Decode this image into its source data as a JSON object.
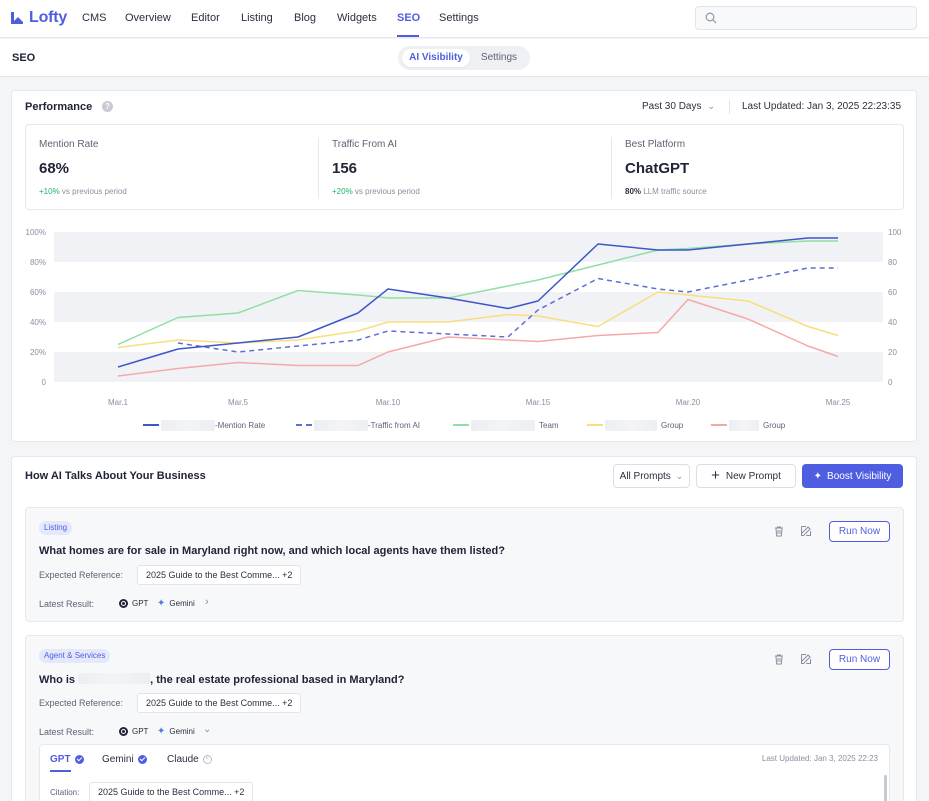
{
  "app": {
    "logo_text": "Lofty",
    "brand_color": "#4f5ee0"
  },
  "nav": {
    "items": [
      {
        "label": "CMS",
        "active": false
      },
      {
        "label": "Overview",
        "active": false
      },
      {
        "label": "Editor",
        "active": false
      },
      {
        "label": "Listing",
        "active": false
      },
      {
        "label": "Blog",
        "active": false
      },
      {
        "label": "Widgets",
        "active": false
      },
      {
        "label": "SEO",
        "active": true
      },
      {
        "label": "Settings",
        "active": false
      }
    ],
    "search_placeholder": ""
  },
  "subbar": {
    "title": "SEO",
    "tabs": [
      {
        "label": "AI Visibility",
        "active": true
      },
      {
        "label": "Settings",
        "active": false
      }
    ]
  },
  "performance": {
    "title": "Performance",
    "help_icon": "question-icon",
    "range": "Past 30 Days",
    "last_updated": "Last Updated: Jan 3, 2025 22:23:35",
    "metrics": [
      {
        "label": "Mention Rate",
        "value": "68%",
        "delta": "+10%",
        "delta_suffix": " vs previous period"
      },
      {
        "label": "Traffic From AI",
        "value": "156",
        "delta": "+20%",
        "delta_suffix": " vs previous period"
      },
      {
        "label": "Best Platform",
        "value": "ChatGPT",
        "note_bold": "80%",
        "note": " LLM traffic source"
      }
    ]
  },
  "chart_data": {
    "type": "line",
    "x": [
      "Mar.1",
      "Mar.3",
      "Mar.5",
      "Mar.7",
      "Mar.9",
      "Mar.10",
      "Mar.12",
      "Mar.14",
      "Mar.15",
      "Mar.17",
      "Mar.19",
      "Mar.20",
      "Mar.22",
      "Mar.24",
      "Mar.25"
    ],
    "x_tick_labels": [
      "Mar.1",
      "Mar.5",
      "Mar.10",
      "Mar.15",
      "Mar.20",
      "Mar.25"
    ],
    "y_left_ticks": [
      "100%",
      "80%",
      "60%",
      "40%",
      "20%",
      "0"
    ],
    "y_right_ticks": [
      "100",
      "80",
      "60",
      "40",
      "20",
      "0"
    ],
    "ylim": [
      0,
      100
    ],
    "grid": "banded",
    "series": [
      {
        "name": "-Mention Rate",
        "color": "#3d56c9",
        "dashed": false,
        "values": [
          10,
          22,
          26,
          30,
          46,
          62,
          56,
          49,
          54,
          92,
          88,
          88,
          92,
          96,
          96
        ]
      },
      {
        "name": "-Traffic from AI",
        "color": "#5b6fd6",
        "dashed": true,
        "values": [
          null,
          26,
          20,
          24,
          28,
          34,
          32,
          30,
          48,
          69,
          62,
          60,
          68,
          76,
          76
        ]
      },
      {
        "name": "Team",
        "color": "#8ee0a4",
        "dashed": false,
        "values": [
          25,
          43,
          46,
          61,
          58,
          56,
          56,
          64,
          68,
          78,
          88,
          89,
          92,
          94,
          94
        ]
      },
      {
        "name": "Group",
        "color": "#f9de7d",
        "dashed": false,
        "values": [
          23,
          28,
          26,
          28,
          34,
          40,
          40,
          45,
          44,
          37,
          60,
          58,
          54,
          37,
          31
        ]
      },
      {
        "name": "Group",
        "color": "#f8a7a7",
        "dashed": false,
        "values": [
          4,
          9,
          13,
          11,
          11,
          20,
          30,
          28,
          27,
          31,
          33,
          55,
          42,
          24,
          17
        ]
      }
    ],
    "legend_position": "bottom"
  },
  "ai_section": {
    "title": "How AI Talks About Your Business",
    "filter": "All Prompts",
    "new_prompt": "New Prompt",
    "boost": "Boost Visibility",
    "prompts": [
      {
        "tag": "Listing",
        "question": "What homes are for sale in Maryland right now, and which local agents have them listed?",
        "expected_label": "Expected Reference:",
        "expected_value": "2025 Guide to the Best Comme...",
        "expected_more": "+2",
        "latest_label": "Latest Result:",
        "gpt": "GPT",
        "gemini": "Gemini",
        "run": "Run Now"
      },
      {
        "tag": "Agent & Services",
        "question_prefix": "Who is",
        "question_suffix": ", the real estate professional based in Maryland?",
        "expected_label": "Expected Reference:",
        "expected_value": "2025 Guide to the Best Comme...",
        "expected_more": "+2",
        "latest_label": "Latest Result:",
        "gpt": "GPT",
        "gemini": "Gemini",
        "run": "Run Now",
        "detail": {
          "tabs": [
            {
              "label": "GPT"
            },
            {
              "label": "Gemini"
            },
            {
              "label": "Claude"
            }
          ],
          "last_updated": "Last Updated: Jan 3, 2025 22:23",
          "citation_label": "Citation:",
          "citation_value": "2025 Guide to the Best Comme...",
          "citation_more": "+2"
        }
      }
    ]
  }
}
